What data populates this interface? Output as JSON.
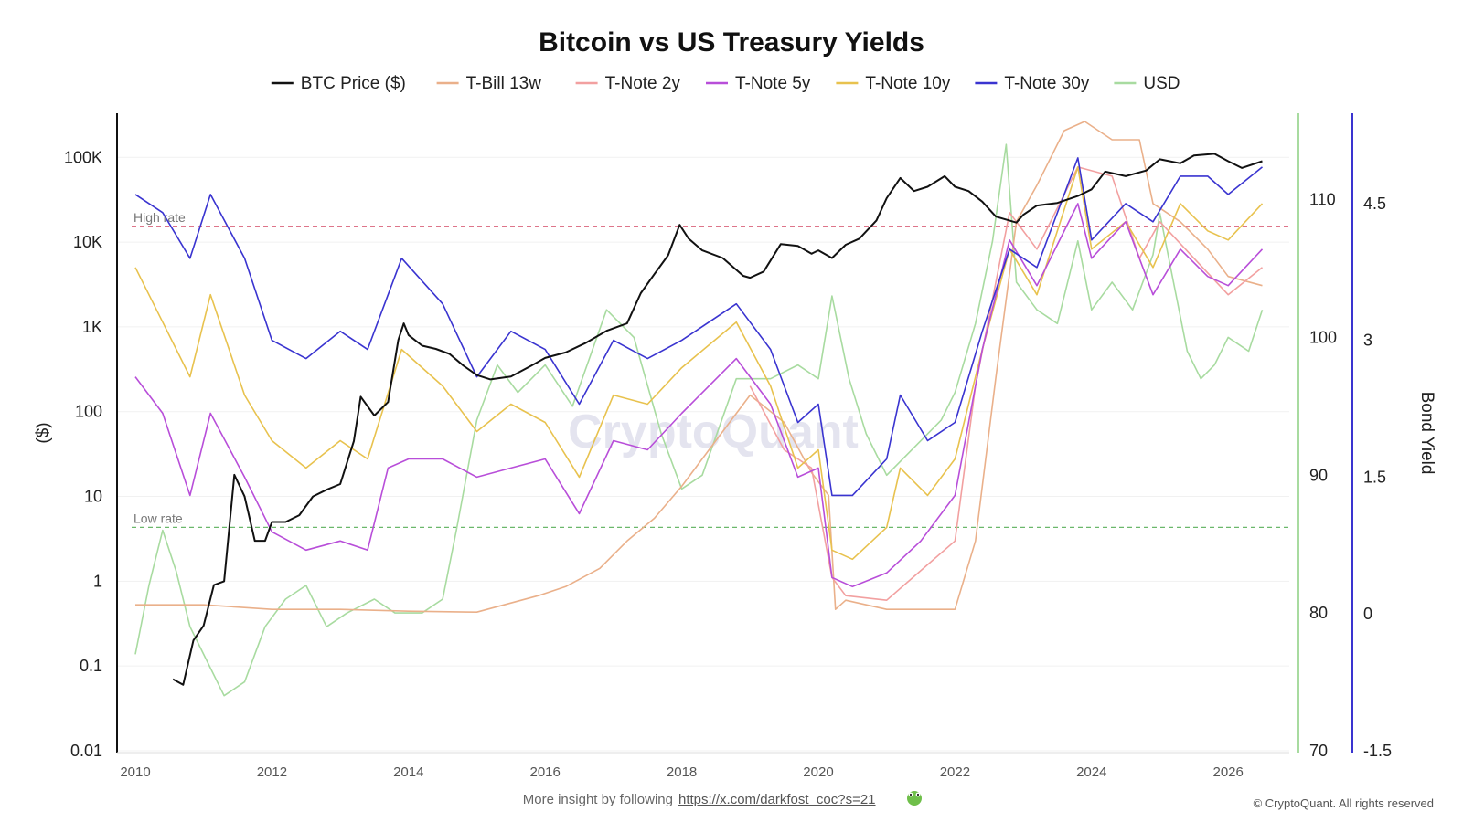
{
  "chart_data": {
    "type": "line",
    "title": "Bitcoin vs US Treasury Yields",
    "ylabel_left": "($)",
    "ylabel_right": "Bond Yield",
    "x_range": [
      2010,
      2026.6
    ],
    "x_ticks": [
      "2010",
      "2012",
      "2014",
      "2016",
      "2018",
      "2020",
      "2022",
      "2024",
      "2026"
    ],
    "y_left": {
      "scale": "log",
      "range": [
        0.01,
        300000
      ],
      "ticks": [
        {
          "label": "0.01",
          "value": 0.01
        },
        {
          "label": "0.1",
          "value": 0.1
        },
        {
          "label": "1",
          "value": 1
        },
        {
          "label": "10",
          "value": 10
        },
        {
          "label": "100",
          "value": 100
        },
        {
          "label": "1K",
          "value": 1000
        },
        {
          "label": "10K",
          "value": 10000
        },
        {
          "label": "100K",
          "value": 100000
        }
      ]
    },
    "y_usd": {
      "range": [
        70,
        116
      ],
      "ticks": [
        "70",
        "80",
        "90",
        "100",
        "110"
      ]
    },
    "y_yield": {
      "range": [
        -1.5,
        5.45
      ],
      "ticks": [
        "-1.5",
        "0",
        "1.5",
        "3",
        "4.5"
      ]
    },
    "reference_lines": [
      {
        "label": "High rate",
        "value": 4.25,
        "axis": "yield",
        "color": "#d9627a"
      },
      {
        "label": "Low rate",
        "value": 0.95,
        "axis": "yield",
        "color": "#6bb86b"
      }
    ],
    "series": [
      {
        "name": "BTC Price ($)",
        "axis": "left",
        "color": "#111111",
        "x": [
          2010.55,
          2010.7,
          2010.85,
          2011.0,
          2011.15,
          2011.3,
          2011.45,
          2011.6,
          2011.75,
          2011.9,
          2012.0,
          2012.2,
          2012.4,
          2012.6,
          2012.8,
          2013.0,
          2013.2,
          2013.3,
          2013.5,
          2013.7,
          2013.85,
          2013.93,
          2014.0,
          2014.2,
          2014.4,
          2014.6,
          2014.8,
          2015.0,
          2015.2,
          2015.5,
          2015.8,
          2016.0,
          2016.3,
          2016.6,
          2016.9,
          2017.2,
          2017.4,
          2017.6,
          2017.8,
          2017.97,
          2018.1,
          2018.3,
          2018.6,
          2018.9,
          2019.0,
          2019.2,
          2019.45,
          2019.7,
          2019.9,
          2020.0,
          2020.2,
          2020.4,
          2020.6,
          2020.85,
          2021.0,
          2021.2,
          2021.4,
          2021.6,
          2021.85,
          2022.0,
          2022.2,
          2022.4,
          2022.6,
          2022.9,
          2023.0,
          2023.2,
          2023.5,
          2023.8,
          2024.0,
          2024.2,
          2024.5,
          2024.8,
          2025.0,
          2025.3,
          2025.5,
          2025.8,
          2026.0,
          2026.2,
          2026.5
        ],
        "y": [
          0.07,
          0.06,
          0.2,
          0.3,
          0.9,
          1.0,
          18,
          10,
          3,
          3,
          5,
          5,
          6,
          10,
          12,
          14,
          45,
          150,
          90,
          130,
          700,
          1100,
          800,
          600,
          550,
          480,
          350,
          270,
          240,
          260,
          350,
          430,
          500,
          650,
          900,
          1100,
          2500,
          4200,
          7000,
          16000,
          11000,
          8000,
          6500,
          4000,
          3800,
          4500,
          9500,
          9000,
          7300,
          8000,
          6500,
          9300,
          11000,
          18000,
          33000,
          57000,
          40000,
          45000,
          60000,
          45000,
          40000,
          30000,
          20000,
          17000,
          21000,
          27000,
          29000,
          35000,
          42000,
          68000,
          60000,
          70000,
          95000,
          85000,
          105000,
          110000,
          90000,
          75000,
          90000
        ]
      },
      {
        "name": "T-Bill 13w",
        "axis": "yield",
        "color": "#eab08a",
        "x": [
          2010.0,
          2011.0,
          2012.0,
          2013.0,
          2014.0,
          2015.0,
          2015.9,
          2016.3,
          2016.8,
          2017.2,
          2017.6,
          2018.0,
          2018.5,
          2019.0,
          2019.5,
          2019.9,
          2020.15,
          2020.25,
          2020.4,
          2021.0,
          2022.0,
          2022.3,
          2022.6,
          2022.9,
          2023.2,
          2023.6,
          2023.9,
          2024.3,
          2024.7,
          2024.9,
          2025.3,
          2025.7,
          2026.0,
          2026.5
        ],
        "y": [
          0.1,
          0.1,
          0.05,
          0.05,
          0.03,
          0.02,
          0.2,
          0.3,
          0.5,
          0.8,
          1.05,
          1.4,
          1.9,
          2.4,
          2.1,
          1.55,
          1.3,
          0.05,
          0.15,
          0.05,
          0.05,
          0.8,
          2.6,
          4.3,
          4.7,
          5.3,
          5.4,
          5.2,
          5.2,
          4.5,
          4.3,
          4.0,
          3.7,
          3.6
        ]
      },
      {
        "name": "T-Note 2y",
        "axis": "yield",
        "color": "#f2a0a0",
        "x": [
          2019.0,
          2019.5,
          2019.9,
          2020.2,
          2020.4,
          2021.0,
          2022.0,
          2022.3,
          2022.8,
          2023.2,
          2023.8,
          2024.3,
          2024.7,
          2025.0,
          2025.5,
          2026.0,
          2026.5
        ],
        "y": [
          2.5,
          1.8,
          1.6,
          0.4,
          0.2,
          0.15,
          0.8,
          2.5,
          4.4,
          4.0,
          4.9,
          4.8,
          3.9,
          4.3,
          3.9,
          3.5,
          3.8
        ]
      },
      {
        "name": "T-Note 5y",
        "axis": "yield",
        "color": "#b84ed9",
        "x": [
          2010.0,
          2010.4,
          2010.8,
          2011.1,
          2011.6,
          2012.0,
          2012.5,
          2013.0,
          2013.4,
          2013.7,
          2014.0,
          2014.5,
          2015.0,
          2015.5,
          2016.0,
          2016.5,
          2017.0,
          2017.5,
          2018.0,
          2018.8,
          2019.3,
          2019.7,
          2020.0,
          2020.2,
          2020.5,
          2021.0,
          2021.5,
          2022.0,
          2022.4,
          2022.8,
          2023.2,
          2023.8,
          2024.0,
          2024.5,
          2024.9,
          2025.3,
          2025.7,
          2026.0,
          2026.5
        ],
        "y": [
          2.6,
          2.2,
          1.3,
          2.2,
          1.5,
          0.9,
          0.7,
          0.8,
          0.7,
          1.6,
          1.7,
          1.7,
          1.5,
          1.6,
          1.7,
          1.1,
          1.9,
          1.8,
          2.2,
          2.8,
          2.3,
          1.5,
          1.6,
          0.4,
          0.3,
          0.45,
          0.8,
          1.3,
          2.9,
          4.1,
          3.6,
          4.5,
          3.9,
          4.3,
          3.5,
          4.0,
          3.7,
          3.6,
          4.0
        ]
      },
      {
        "name": "T-Note 10y",
        "axis": "yield",
        "color": "#e8c24e",
        "x": [
          2010.0,
          2010.4,
          2010.8,
          2011.1,
          2011.6,
          2012.0,
          2012.5,
          2013.0,
          2013.4,
          2013.9,
          2014.5,
          2015.0,
          2015.5,
          2016.0,
          2016.5,
          2017.0,
          2017.5,
          2018.0,
          2018.8,
          2019.3,
          2019.7,
          2020.0,
          2020.2,
          2020.5,
          2021.0,
          2021.2,
          2021.6,
          2022.0,
          2022.4,
          2022.8,
          2023.2,
          2023.8,
          2024.0,
          2024.5,
          2024.9,
          2025.3,
          2025.7,
          2026.0,
          2026.5
        ],
        "y": [
          3.8,
          3.2,
          2.6,
          3.5,
          2.4,
          1.9,
          1.6,
          1.9,
          1.7,
          2.9,
          2.5,
          2.0,
          2.3,
          2.1,
          1.5,
          2.4,
          2.3,
          2.7,
          3.2,
          2.5,
          1.6,
          1.8,
          0.7,
          0.6,
          0.95,
          1.6,
          1.3,
          1.7,
          2.9,
          4.0,
          3.5,
          4.9,
          4.0,
          4.3,
          3.8,
          4.5,
          4.2,
          4.1,
          4.5
        ]
      },
      {
        "name": "T-Note 30y",
        "axis": "yield",
        "color": "#3a34d0",
        "x": [
          2010.0,
          2010.4,
          2010.8,
          2011.1,
          2011.6,
          2012.0,
          2012.5,
          2013.0,
          2013.4,
          2013.9,
          2014.5,
          2015.0,
          2015.5,
          2016.0,
          2016.5,
          2017.0,
          2017.5,
          2018.0,
          2018.8,
          2019.3,
          2019.7,
          2020.0,
          2020.2,
          2020.5,
          2021.0,
          2021.2,
          2021.6,
          2022.0,
          2022.4,
          2022.8,
          2023.2,
          2023.8,
          2024.0,
          2024.5,
          2024.9,
          2025.3,
          2025.7,
          2026.0,
          2026.5
        ],
        "y": [
          4.6,
          4.4,
          3.9,
          4.6,
          3.9,
          3.0,
          2.8,
          3.1,
          2.9,
          3.9,
          3.4,
          2.6,
          3.1,
          2.9,
          2.3,
          3.0,
          2.8,
          3.0,
          3.4,
          2.9,
          2.1,
          2.3,
          1.3,
          1.3,
          1.7,
          2.4,
          1.9,
          2.1,
          3.1,
          4.0,
          3.8,
          5.0,
          4.1,
          4.5,
          4.3,
          4.8,
          4.8,
          4.6,
          4.9
        ]
      },
      {
        "name": "USD",
        "axis": "usd",
        "color": "#a8dba0",
        "x": [
          2010.0,
          2010.2,
          2010.4,
          2010.6,
          2010.8,
          2011.0,
          2011.3,
          2011.6,
          2011.9,
          2012.2,
          2012.5,
          2012.8,
          2013.1,
          2013.5,
          2013.8,
          2014.2,
          2014.5,
          2014.7,
          2015.0,
          2015.3,
          2015.6,
          2016.0,
          2016.4,
          2016.9,
          2017.3,
          2017.7,
          2018.0,
          2018.3,
          2018.8,
          2019.3,
          2019.7,
          2020.0,
          2020.2,
          2020.45,
          2020.7,
          2021.0,
          2021.4,
          2021.8,
          2022.0,
          2022.3,
          2022.55,
          2022.75,
          2022.9,
          2023.2,
          2023.5,
          2023.8,
          2024.0,
          2024.3,
          2024.6,
          2024.9,
          2025.0,
          2025.2,
          2025.4,
          2025.6,
          2025.8,
          2026.0,
          2026.3,
          2026.5
        ],
        "y": [
          77,
          82,
          86,
          83,
          79,
          77,
          74,
          75,
          79,
          81,
          82,
          79,
          80,
          81,
          80,
          80,
          81,
          86,
          94,
          98,
          96,
          98,
          95,
          102,
          100,
          93,
          89,
          90,
          97,
          97,
          98,
          97,
          103,
          97,
          93,
          90,
          92,
          94,
          96,
          101,
          107,
          114,
          104,
          102,
          101,
          107,
          102,
          104,
          102,
          106,
          109,
          104,
          99,
          97,
          98,
          100,
          99,
          102
        ]
      }
    ]
  },
  "legend": [
    {
      "label": "BTC Price ($)",
      "color": "#111111"
    },
    {
      "label": "T-Bill 13w",
      "color": "#eab08a"
    },
    {
      "label": "T-Note 2y",
      "color": "#f2a0a0"
    },
    {
      "label": "T-Note 5y",
      "color": "#b84ed9"
    },
    {
      "label": "T-Note 10y",
      "color": "#e8c24e"
    },
    {
      "label": "T-Note 30y",
      "color": "#3a34d0"
    },
    {
      "label": "USD",
      "color": "#a8dba0"
    }
  ],
  "watermark": "CryptoQuant",
  "footer": {
    "text": "More insight by following",
    "link": "https://x.com/darkfost_coc?s=21",
    "copyright": "© CryptoQuant. All rights reserved"
  },
  "colors": {
    "left_axis": "#111111",
    "usd_axis": "#a8dba0",
    "yield_axis": "#3a34d0"
  }
}
